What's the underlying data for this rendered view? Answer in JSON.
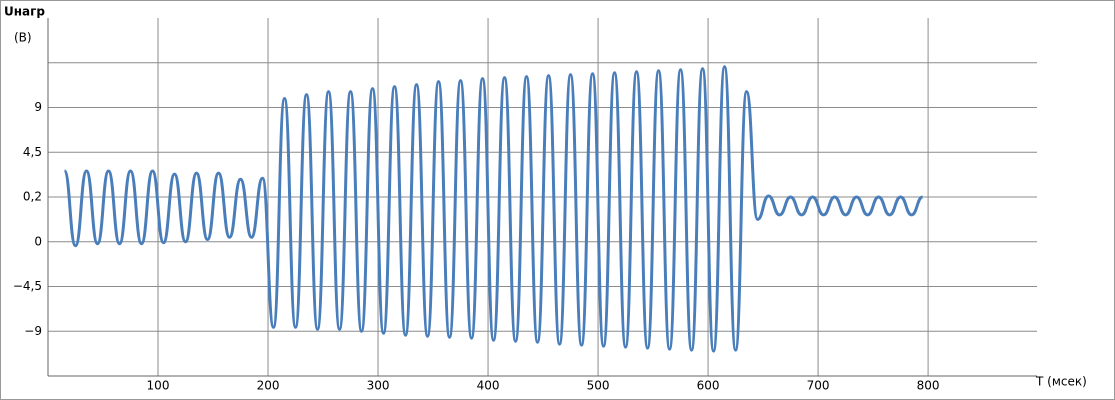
{
  "chart_data": {
    "type": "line",
    "y_label_lines": [
      "Uнагр",
      "(В)"
    ],
    "x_label": "T (мсек)",
    "xlim": [
      0,
      899
    ],
    "xticks": [
      100,
      200,
      300,
      400,
      500,
      600,
      700,
      800
    ],
    "ylim": [
      -13.5,
      17.8
    ],
    "yticks": [
      {
        "value": -9,
        "label": "−9"
      },
      {
        "value": -4.5,
        "label": "−4,5"
      },
      0,
      {
        "value": 0.2,
        "label": "0,2"
      },
      {
        "value": 4.5,
        "label": "4,5"
      },
      9,
      {
        "value": 13.5,
        "label": null
      }
    ],
    "grid": true,
    "x": [
      15,
      25,
      35,
      45,
      55,
      65,
      75,
      85,
      95,
      105,
      115,
      125,
      135,
      145,
      155,
      165,
      175,
      185,
      195,
      205,
      215,
      225,
      235,
      245,
      255,
      265,
      275,
      285,
      295,
      305,
      315,
      325,
      335,
      345,
      355,
      365,
      375,
      385,
      395,
      405,
      415,
      425,
      435,
      445,
      455,
      465,
      475,
      485,
      495,
      505,
      515,
      525,
      535,
      545,
      555,
      565,
      575,
      585,
      595,
      605,
      615,
      625,
      635,
      645,
      655,
      665,
      675,
      685,
      695,
      705,
      715,
      725,
      735,
      745,
      755,
      765,
      775,
      785,
      795
    ],
    "series": [
      {
        "color": "#4a7ebb",
        "values": [
          2.7,
          -0.4,
          2.7,
          -0.2,
          2.7,
          -0.2,
          2.7,
          -0.2,
          2.7,
          -0.1,
          2.4,
          0,
          2.5,
          0.01,
          2.5,
          0.02,
          1.9,
          0.02,
          2.0,
          -8.6,
          9.9,
          -8.6,
          10.3,
          -8.8,
          10.6,
          -8.8,
          10.6,
          -9,
          10.9,
          -9.2,
          11.1,
          -9.4,
          11.3,
          -9.5,
          11.6,
          -9.6,
          11.7,
          -9.7,
          11.9,
          -9.9,
          12.0,
          -10,
          12.1,
          -10.1,
          12.2,
          -10.3,
          12.3,
          -10.4,
          12.4,
          -10.5,
          12.5,
          -10.6,
          12.6,
          -10.7,
          12.7,
          -10.8,
          12.8,
          -10.9,
          12.9,
          -11,
          13.1,
          -10.9,
          10.6,
          0.1,
          0.3,
          0.12,
          0.2,
          0.12,
          0.2,
          0.12,
          0.2,
          0.12,
          0.2,
          0.12,
          0.2,
          0.12,
          0.2,
          0.12,
          0.2
        ]
      }
    ]
  }
}
